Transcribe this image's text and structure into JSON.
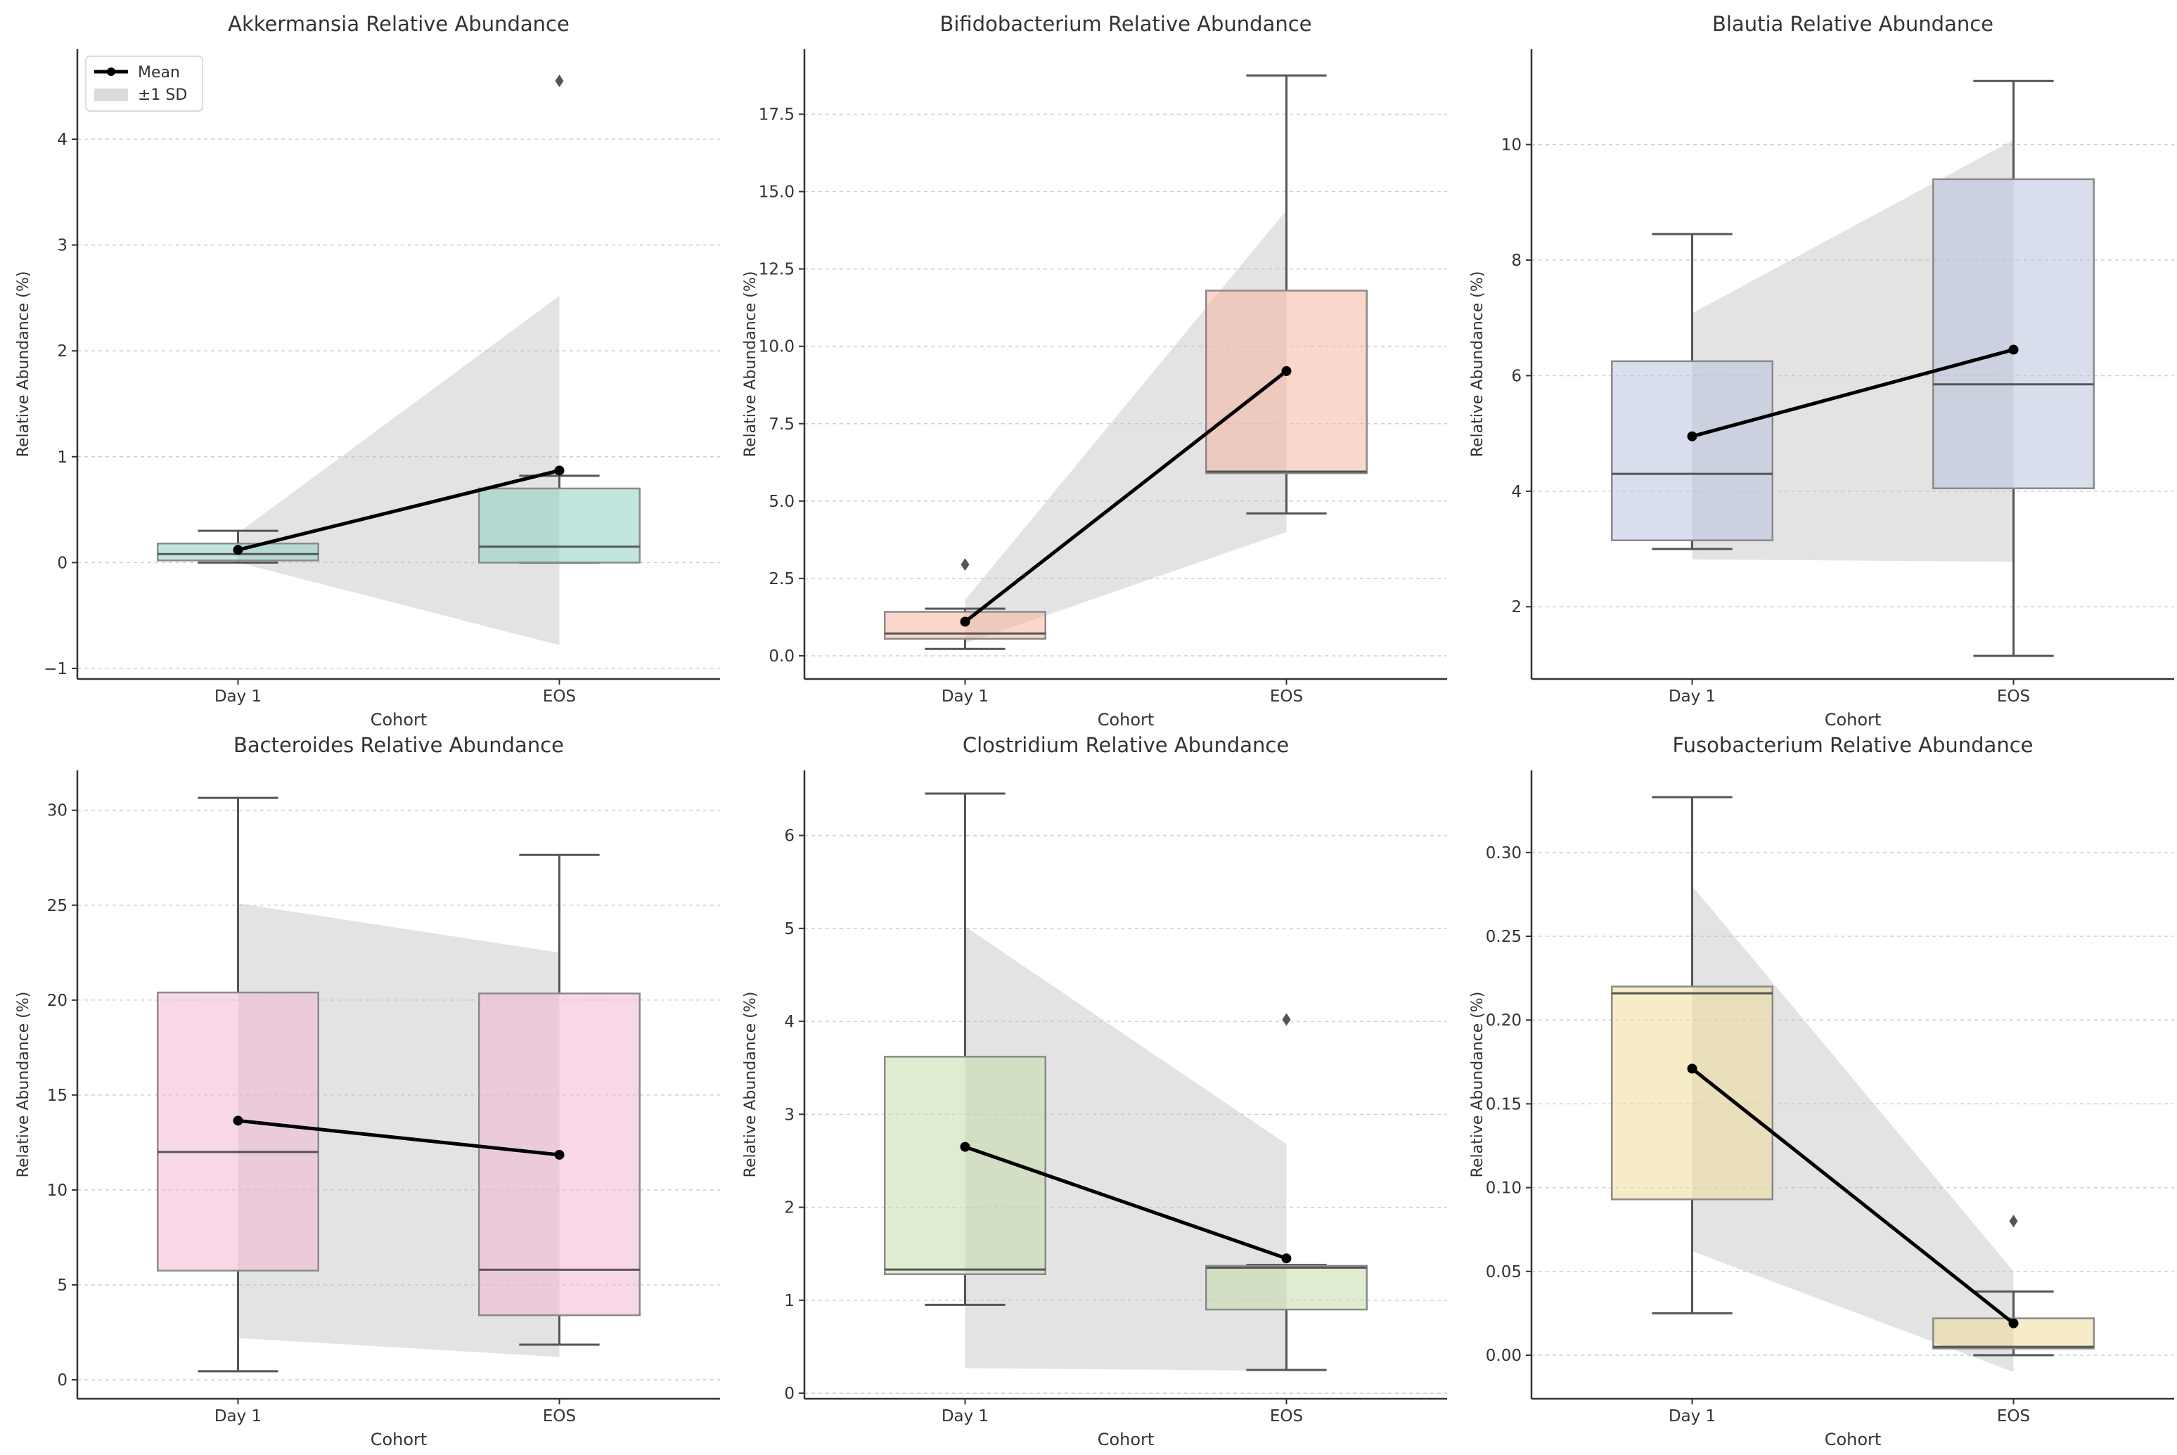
{
  "legend": {
    "mean_label": "Mean",
    "sd_label": "±1 SD"
  },
  "chart_data": [
    {
      "type": "box",
      "title": "Akkermansia Relative Abundance",
      "xlabel": "Cohort",
      "ylabel": "Relative Abundance (%)",
      "categories": [
        "Day 1",
        "EOS"
      ],
      "ylim": [
        -1.1,
        4.85
      ],
      "yticks": [
        -1,
        0,
        1,
        2,
        3,
        4
      ],
      "ytick_labels": [
        "−1",
        "0",
        "1",
        "2",
        "3",
        "4"
      ],
      "color": "#8fd1c2",
      "boxes": [
        {
          "whisker_low": 0.0,
          "q1": 0.02,
          "median": 0.08,
          "q3": 0.18,
          "whisker_high": 0.3,
          "outliers": []
        },
        {
          "whisker_low": 0.0,
          "q1": 0.0,
          "median": 0.15,
          "q3": 0.7,
          "whisker_high": 0.82,
          "outliers": [
            4.55
          ]
        }
      ],
      "mean": [
        0.12,
        0.87
      ],
      "sd_band": [
        [
          0.0,
          0.28
        ],
        [
          -0.78,
          2.52
        ]
      ],
      "legend": true
    },
    {
      "type": "box",
      "title": "Bifidobacterium Relative Abundance",
      "xlabel": "Cohort",
      "ylabel": "Relative Abundance (%)",
      "categories": [
        "Day 1",
        "EOS"
      ],
      "ylim": [
        -0.75,
        19.6
      ],
      "yticks": [
        0,
        2.5,
        5,
        7.5,
        10,
        12.5,
        15,
        17.5
      ],
      "ytick_labels": [
        "0.0",
        "2.5",
        "5.0",
        "7.5",
        "10.0",
        "12.5",
        "15.0",
        "17.5"
      ],
      "color": "#f5b4a0",
      "boxes": [
        {
          "whisker_low": 0.22,
          "q1": 0.55,
          "median": 0.72,
          "q3": 1.42,
          "whisker_high": 1.52,
          "outliers": [
            2.95
          ]
        },
        {
          "whisker_low": 4.6,
          "q1": 5.9,
          "median": 5.95,
          "q3": 11.8,
          "whisker_high": 18.75,
          "outliers": []
        }
      ],
      "mean": [
        1.1,
        9.2
      ],
      "sd_band": [
        [
          0.4,
          1.8
        ],
        [
          4.0,
          14.4
        ]
      ]
    },
    {
      "type": "box",
      "title": "Blautia Relative Abundance",
      "xlabel": "Cohort",
      "ylabel": "Relative Abundance (%)",
      "categories": [
        "Day 1",
        "EOS"
      ],
      "ylim": [
        0.75,
        11.65
      ],
      "yticks": [
        2,
        4,
        6,
        8,
        10
      ],
      "ytick_labels": [
        "2",
        "4",
        "6",
        "8",
        "10"
      ],
      "color": "#b9c3dc",
      "boxes": [
        {
          "whisker_low": 3.0,
          "q1": 3.15,
          "median": 4.3,
          "q3": 6.25,
          "whisker_high": 8.45,
          "outliers": []
        },
        {
          "whisker_low": 1.15,
          "q1": 4.05,
          "median": 5.85,
          "q3": 9.4,
          "whisker_high": 11.1,
          "outliers": []
        }
      ],
      "mean": [
        4.95,
        6.45
      ],
      "sd_band": [
        [
          2.82,
          7.08
        ],
        [
          2.78,
          10.08
        ]
      ]
    },
    {
      "type": "box",
      "title": "Bacteroides Relative Abundance",
      "xlabel": "Cohort",
      "ylabel": "Relative Abundance (%)",
      "categories": [
        "Day 1",
        "EOS"
      ],
      "ylim": [
        -1.0,
        32.1
      ],
      "yticks": [
        0,
        5,
        10,
        15,
        20,
        25,
        30
      ],
      "ytick_labels": [
        "0",
        "5",
        "10",
        "15",
        "20",
        "25",
        "30"
      ],
      "color": "#f2b6d2",
      "boxes": [
        {
          "whisker_low": 0.45,
          "q1": 5.75,
          "median": 12.0,
          "q3": 20.4,
          "whisker_high": 30.65,
          "outliers": []
        },
        {
          "whisker_low": 1.85,
          "q1": 3.4,
          "median": 5.8,
          "q3": 20.35,
          "whisker_high": 27.65,
          "outliers": []
        }
      ],
      "mean": [
        13.65,
        11.85
      ],
      "sd_band": [
        [
          2.2,
          25.1
        ],
        [
          1.2,
          22.5
        ]
      ]
    },
    {
      "type": "box",
      "title": "Clostridium Relative Abundance",
      "xlabel": "Cohort",
      "ylabel": "Relative Abundance (%)",
      "categories": [
        "Day 1",
        "EOS"
      ],
      "ylim": [
        -0.06,
        6.7
      ],
      "yticks": [
        0,
        1,
        2,
        3,
        4,
        5,
        6
      ],
      "ytick_labels": [
        "0",
        "1",
        "2",
        "3",
        "4",
        "5",
        "6"
      ],
      "color": "#c5dcaa",
      "boxes": [
        {
          "whisker_low": 0.95,
          "q1": 1.28,
          "median": 1.33,
          "q3": 3.62,
          "whisker_high": 6.45,
          "outliers": []
        },
        {
          "whisker_low": 0.25,
          "q1": 0.9,
          "median": 1.35,
          "q3": 1.37,
          "whisker_high": 1.38,
          "outliers": [
            4.02
          ]
        }
      ],
      "mean": [
        2.65,
        1.45
      ],
      "sd_band": [
        [
          0.27,
          5.02
        ],
        [
          0.24,
          2.68
        ]
      ]
    },
    {
      "type": "box",
      "title": "Fusobacterium Relative Abundance",
      "xlabel": "Cohort",
      "ylabel": "Relative Abundance (%)",
      "categories": [
        "Day 1",
        "EOS"
      ],
      "ylim": [
        -0.026,
        0.349
      ],
      "yticks": [
        0,
        0.05,
        0.1,
        0.15,
        0.2,
        0.25,
        0.3
      ],
      "ytick_labels": [
        "0.00",
        "0.05",
        "0.10",
        "0.15",
        "0.20",
        "0.25",
        "0.30"
      ],
      "color": "#eedc9a",
      "boxes": [
        {
          "whisker_low": 0.025,
          "q1": 0.093,
          "median": 0.216,
          "q3": 0.22,
          "whisker_high": 0.333,
          "outliers": []
        },
        {
          "whisker_low": 0.0,
          "q1": 0.004,
          "median": 0.005,
          "q3": 0.022,
          "whisker_high": 0.038,
          "outliers": [
            0.08
          ]
        }
      ],
      "mean": [
        0.171,
        0.019
      ],
      "sd_band": [
        [
          0.062,
          0.28
        ],
        [
          -0.01,
          0.05
        ]
      ]
    }
  ]
}
